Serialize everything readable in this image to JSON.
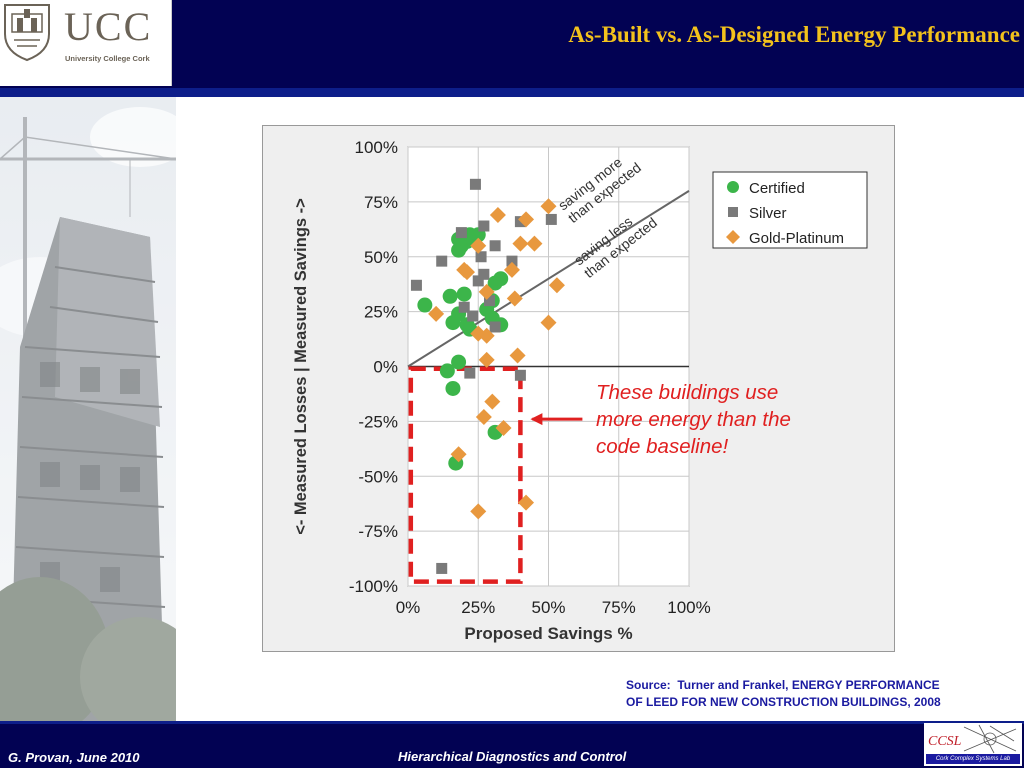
{
  "header": {
    "title": "As-Built vs. As-Designed Energy Performance",
    "logo_text": "UCC",
    "logo_subtext": "University College Cork"
  },
  "chart_data": {
    "type": "scatter",
    "xlabel": "Proposed Savings %",
    "ylabel": "<- Measured Losses | Measured Savings ->",
    "xlim": [
      0,
      100
    ],
    "ylim": [
      -100,
      100
    ],
    "x_ticks": [
      "0%",
      "25%",
      "50%",
      "75%",
      "100%"
    ],
    "y_ticks": [
      "100%",
      "75%",
      "50%",
      "25%",
      "0%",
      "-25%",
      "-50%",
      "-75%",
      "-100%"
    ],
    "grid": true,
    "legend_position": "top-right",
    "series": [
      {
        "name": "Certified",
        "color": "#3cb54a",
        "marker": "circle",
        "points": [
          [
            6,
            28
          ],
          [
            15,
            32
          ],
          [
            18,
            58
          ],
          [
            18,
            53
          ],
          [
            19,
            55
          ],
          [
            21,
            57
          ],
          [
            22,
            60
          ],
          [
            23,
            58
          ],
          [
            25,
            60
          ],
          [
            20,
            33
          ],
          [
            18,
            24
          ],
          [
            16,
            20
          ],
          [
            21,
            19
          ],
          [
            22,
            17
          ],
          [
            28,
            26
          ],
          [
            30,
            22
          ],
          [
            31,
            38
          ],
          [
            33,
            40
          ],
          [
            33,
            19
          ],
          [
            30,
            30
          ],
          [
            18,
            2
          ],
          [
            14,
            -2
          ],
          [
            16,
            -10
          ],
          [
            31,
            -30
          ],
          [
            17,
            -44
          ]
        ]
      },
      {
        "name": "Silver",
        "color": "#7a7a7a",
        "marker": "square",
        "points": [
          [
            3,
            37
          ],
          [
            12,
            48
          ],
          [
            19,
            61
          ],
          [
            24,
            83
          ],
          [
            27,
            64
          ],
          [
            31,
            55
          ],
          [
            26,
            50
          ],
          [
            27,
            42
          ],
          [
            25,
            39
          ],
          [
            31,
            18
          ],
          [
            37,
            48
          ],
          [
            40,
            66
          ],
          [
            51,
            67
          ],
          [
            23,
            23
          ],
          [
            22,
            -3
          ],
          [
            40,
            -4
          ],
          [
            12,
            -92
          ],
          [
            29,
            30
          ],
          [
            20,
            27
          ]
        ]
      },
      {
        "name": "Gold-Platinum",
        "color": "#e8983e",
        "marker": "diamond",
        "points": [
          [
            10,
            24
          ],
          [
            20,
            44
          ],
          [
            21,
            43
          ],
          [
            25,
            55
          ],
          [
            28,
            34
          ],
          [
            32,
            69
          ],
          [
            37,
            44
          ],
          [
            38,
            31
          ],
          [
            40,
            56
          ],
          [
            42,
            67
          ],
          [
            45,
            56
          ],
          [
            50,
            73
          ],
          [
            53,
            37
          ],
          [
            50,
            20
          ],
          [
            25,
            15
          ],
          [
            28,
            14
          ],
          [
            28,
            3
          ],
          [
            39,
            5
          ],
          [
            30,
            -16
          ],
          [
            27,
            -23
          ],
          [
            34,
            -28
          ],
          [
            18,
            -40
          ],
          [
            25,
            -66
          ],
          [
            42,
            -62
          ]
        ]
      }
    ],
    "annotations": {
      "upper_line_label": "saving more\nthan expected",
      "lower_line_label": "saving less\nthan expected",
      "callout_text": "These buildings use\nmore energy than the\ncode baseline!"
    }
  },
  "source_text": "Source:  Turner and Frankel, ENERGY PERFORMANCE\nOF LEED FOR NEW CONSTRUCTION BUILDINGS, 2008",
  "footer": {
    "left": "G. Provan, June 2010",
    "center": "Hierarchical Diagnostics and Control",
    "lab_logo_caption": "Cork Complex Systems Lab"
  },
  "colors": {
    "header_bg": "#020253",
    "title": "#f3c21c",
    "source_text": "#1a1aa0",
    "callout": "#e02020"
  }
}
